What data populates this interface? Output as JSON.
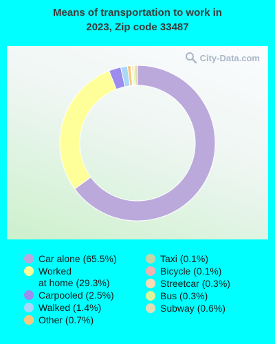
{
  "title": "Means of transportation to work in\n2023, Zip code 33487",
  "watermark": "City-Data.com",
  "chart_data": {
    "type": "pie",
    "donut": true,
    "title": "Means of transportation to work in 2023, Zip code 33487",
    "series": [
      {
        "name": "Car alone",
        "value": 65.5,
        "color": "#bba9dc",
        "label": "Car alone (65.5%)"
      },
      {
        "name": "Worked at home",
        "value": 29.3,
        "color": "#ffff99",
        "label": "Worked\nat home (29.3%)"
      },
      {
        "name": "Carpooled",
        "value": 2.5,
        "color": "#9b8ced",
        "label": "Carpooled (2.5%)"
      },
      {
        "name": "Walked",
        "value": 1.4,
        "color": "#a9d8f8",
        "label": "Walked (1.4%)"
      },
      {
        "name": "Other",
        "value": 0.7,
        "color": "#f7c880",
        "label": "Other (0.7%)"
      },
      {
        "name": "Taxi",
        "value": 0.1,
        "color": "#c2d7a8",
        "label": "Taxi (0.1%)"
      },
      {
        "name": "Bicycle",
        "value": 0.1,
        "color": "#f0b1b1",
        "label": "Bicycle (0.1%)"
      },
      {
        "name": "Streetcar",
        "value": 0.3,
        "color": "#f9dcb4",
        "label": "Streetcar (0.3%)"
      },
      {
        "name": "Bus",
        "value": 0.3,
        "color": "#ddf59a",
        "label": "Bus (0.3%)"
      },
      {
        "name": "Subway",
        "value": 0.6,
        "color": "#e2dfb6",
        "label": "Subway (0.6%)"
      }
    ],
    "legend_position": "bottom",
    "legend_columns": [
      [
        "Car alone",
        "Worked at home",
        "Carpooled",
        "Walked",
        "Other"
      ],
      [
        "Taxi",
        "Bicycle",
        "Streetcar",
        "Bus",
        "Subway"
      ]
    ]
  }
}
